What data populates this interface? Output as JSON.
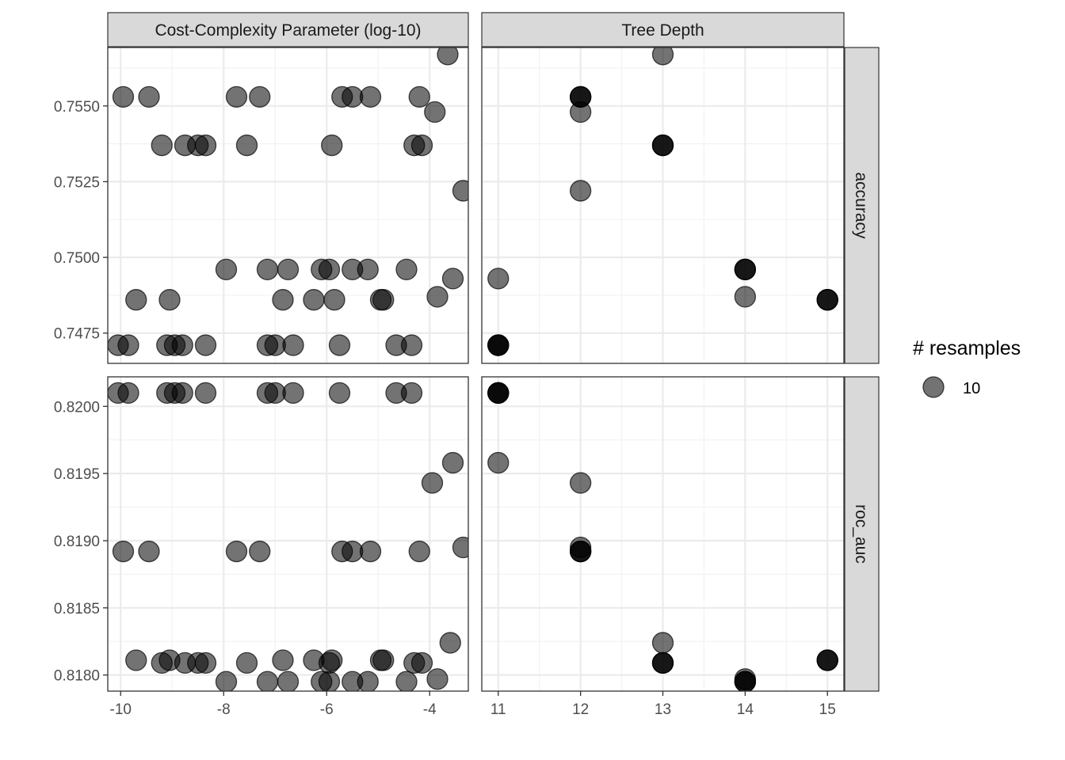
{
  "chart_data": {
    "type": "scatter",
    "facets": {
      "columns": [
        "Cost-Complexity Parameter (log-10)",
        "Tree Depth"
      ],
      "rows": [
        "accuracy",
        "roc_auc"
      ]
    },
    "axes": {
      "x": [
        {
          "range": [
            -10.25,
            -3.25
          ],
          "ticks": [
            -10,
            -8,
            -6,
            -4
          ],
          "tick_labels": [
            "-10",
            "-8",
            "-6",
            "-4"
          ],
          "minor_grid": [
            -9,
            -7,
            -5,
            -3
          ]
        },
        {
          "range": [
            10.8,
            15.2
          ],
          "ticks": [
            11,
            12,
            13,
            14,
            15
          ],
          "tick_labels": [
            "11",
            "12",
            "13",
            "14",
            "15"
          ],
          "minor_grid": [
            11.5,
            12.5,
            13.5,
            14.5
          ]
        }
      ],
      "y": [
        {
          "range": [
            0.7465,
            0.75693
          ],
          "ticks": [
            0.7475,
            0.75,
            0.7525,
            0.755
          ],
          "tick_labels": [
            "0.7475",
            "0.7500",
            "0.7525",
            "0.7550"
          ],
          "minor_grid": [
            0.74875,
            0.75125,
            0.75375,
            0.75625
          ]
        },
        {
          "range": [
            0.81788,
            0.82022
          ],
          "ticks": [
            0.818,
            0.8185,
            0.819,
            0.8195,
            0.82
          ],
          "tick_labels": [
            "0.8180",
            "0.8185",
            "0.8190",
            "0.8195",
            "0.8200"
          ],
          "minor_grid": [
            0.81825,
            0.81875,
            0.81925,
            0.81975
          ]
        }
      ]
    },
    "grid": true,
    "legend": {
      "title": "# resamples",
      "label": "10",
      "position": "right"
    },
    "colors": {
      "point": "#000000",
      "point_alpha": 0.55,
      "strip_bg": "#d9d9d9",
      "grid": "#ebebeb"
    },
    "panels": [
      {
        "col": 0,
        "row": 0,
        "points": [
          [
            -9.95,
            0.7553
          ],
          [
            -9.45,
            0.7553
          ],
          [
            -7.75,
            0.7553
          ],
          [
            -7.3,
            0.7553
          ],
          [
            -5.7,
            0.7553
          ],
          [
            -5.5,
            0.7553
          ],
          [
            -5.15,
            0.7553
          ],
          [
            -4.2,
            0.7553
          ],
          [
            -3.65,
            0.7567
          ],
          [
            -3.9,
            0.7548
          ],
          [
            -9.2,
            0.7537
          ],
          [
            -8.75,
            0.7537
          ],
          [
            -8.5,
            0.7537
          ],
          [
            -8.35,
            0.7537
          ],
          [
            -7.55,
            0.7537
          ],
          [
            -5.9,
            0.7537
          ],
          [
            -4.3,
            0.7537
          ],
          [
            -4.15,
            0.7537
          ],
          [
            -3.35,
            0.7522
          ],
          [
            -7.95,
            0.7496
          ],
          [
            -7.15,
            0.7496
          ],
          [
            -6.75,
            0.7496
          ],
          [
            -6.1,
            0.7496
          ],
          [
            -5.95,
            0.7496
          ],
          [
            -5.5,
            0.7496
          ],
          [
            -5.2,
            0.7496
          ],
          [
            -4.45,
            0.7496
          ],
          [
            -3.55,
            0.7493
          ],
          [
            -3.85,
            0.7487
          ],
          [
            -9.7,
            0.7486
          ],
          [
            -9.05,
            0.7486
          ],
          [
            -6.85,
            0.7486
          ],
          [
            -6.25,
            0.7486
          ],
          [
            -5.85,
            0.7486
          ],
          [
            -4.95,
            0.7486
          ],
          [
            -4.9,
            0.7486
          ],
          [
            -10.05,
            0.7471
          ],
          [
            -9.85,
            0.7471
          ],
          [
            -9.1,
            0.7471
          ],
          [
            -8.95,
            0.7471
          ],
          [
            -8.8,
            0.7471
          ],
          [
            -8.35,
            0.7471
          ],
          [
            -7.15,
            0.7471
          ],
          [
            -7.0,
            0.7471
          ],
          [
            -6.65,
            0.7471
          ],
          [
            -5.75,
            0.7471
          ],
          [
            -4.65,
            0.7471
          ],
          [
            -4.35,
            0.7471
          ]
        ]
      },
      {
        "col": 1,
        "row": 0,
        "points": [
          [
            13,
            0.7567
          ],
          [
            12,
            0.7548
          ],
          [
            12,
            0.7522
          ],
          [
            11,
            0.7493
          ],
          [
            14,
            0.7487
          ],
          [
            12,
            0.7553
          ],
          [
            12,
            0.7553
          ],
          [
            12,
            0.7553
          ],
          [
            13,
            0.7537
          ],
          [
            13,
            0.7537
          ],
          [
            13,
            0.7537
          ],
          [
            14,
            0.7496
          ],
          [
            14,
            0.7496
          ],
          [
            14,
            0.7496
          ],
          [
            15,
            0.7486
          ],
          [
            15,
            0.7486
          ],
          [
            15,
            0.7486
          ],
          [
            11,
            0.7471
          ],
          [
            11,
            0.7471
          ],
          [
            11,
            0.7471
          ],
          [
            11,
            0.7471
          ]
        ]
      },
      {
        "col": 0,
        "row": 1,
        "points": [
          [
            -10.05,
            0.8201
          ],
          [
            -9.85,
            0.8201
          ],
          [
            -9.1,
            0.8201
          ],
          [
            -8.95,
            0.8201
          ],
          [
            -8.8,
            0.8201
          ],
          [
            -8.35,
            0.8201
          ],
          [
            -7.15,
            0.8201
          ],
          [
            -7.0,
            0.8201
          ],
          [
            -6.65,
            0.8201
          ],
          [
            -5.75,
            0.8201
          ],
          [
            -4.65,
            0.8201
          ],
          [
            -4.35,
            0.8201
          ],
          [
            -3.55,
            0.81958
          ],
          [
            -3.95,
            0.81943
          ],
          [
            -9.95,
            0.81892
          ],
          [
            -9.45,
            0.81892
          ],
          [
            -7.75,
            0.81892
          ],
          [
            -7.3,
            0.81892
          ],
          [
            -5.7,
            0.81892
          ],
          [
            -5.5,
            0.81892
          ],
          [
            -5.15,
            0.81892
          ],
          [
            -4.2,
            0.81892
          ],
          [
            -3.35,
            0.81895
          ],
          [
            -3.6,
            0.81824
          ],
          [
            -9.7,
            0.81811
          ],
          [
            -9.2,
            0.81809
          ],
          [
            -9.05,
            0.81811
          ],
          [
            -8.75,
            0.81809
          ],
          [
            -8.5,
            0.81809
          ],
          [
            -8.35,
            0.81809
          ],
          [
            -7.55,
            0.81809
          ],
          [
            -6.85,
            0.81811
          ],
          [
            -6.25,
            0.81811
          ],
          [
            -5.95,
            0.81809
          ],
          [
            -5.9,
            0.81811
          ],
          [
            -4.95,
            0.81811
          ],
          [
            -4.9,
            0.81811
          ],
          [
            -4.3,
            0.81809
          ],
          [
            -4.15,
            0.81809
          ],
          [
            -7.95,
            0.81795
          ],
          [
            -7.15,
            0.81795
          ],
          [
            -6.75,
            0.81795
          ],
          [
            -6.1,
            0.81795
          ],
          [
            -5.95,
            0.81795
          ],
          [
            -5.5,
            0.81795
          ],
          [
            -5.2,
            0.81795
          ],
          [
            -4.45,
            0.81795
          ],
          [
            -3.85,
            0.81797
          ]
        ]
      },
      {
        "col": 1,
        "row": 1,
        "points": [
          [
            11,
            0.8201
          ],
          [
            11,
            0.8201
          ],
          [
            11,
            0.8201
          ],
          [
            11,
            0.8201
          ],
          [
            11,
            0.81958
          ],
          [
            12,
            0.81943
          ],
          [
            12,
            0.81895
          ],
          [
            12,
            0.81892
          ],
          [
            12,
            0.81892
          ],
          [
            12,
            0.81892
          ],
          [
            13,
            0.81824
          ],
          [
            13,
            0.81809
          ],
          [
            13,
            0.81809
          ],
          [
            13,
            0.81809
          ],
          [
            14,
            0.81797
          ],
          [
            14,
            0.81795
          ],
          [
            14,
            0.81795
          ],
          [
            14,
            0.81795
          ],
          [
            15,
            0.81811
          ],
          [
            15,
            0.81811
          ],
          [
            15,
            0.81811
          ]
        ]
      }
    ]
  }
}
